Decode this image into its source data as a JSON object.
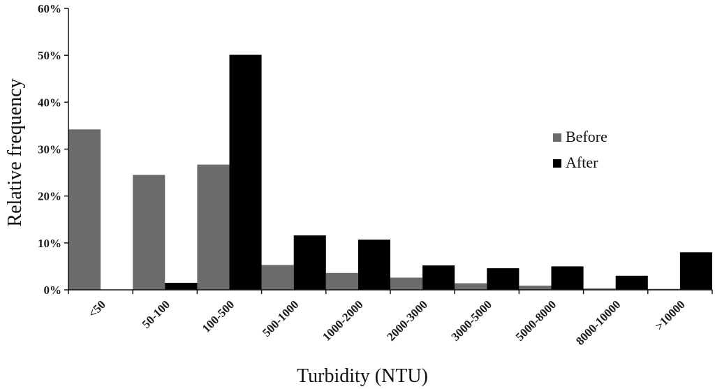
{
  "chart_data": {
    "type": "bar",
    "categories": [
      "<50",
      "50-100",
      "100-500",
      "500-1000",
      "1000-2000",
      "2000-3000",
      "3000-5000",
      "5000-8000",
      "8000-10000",
      ">10000"
    ],
    "series": [
      {
        "name": "Before",
        "color": "#6b6b6b",
        "values": [
          34.2,
          24.5,
          26.7,
          5.3,
          3.6,
          2.6,
          1.4,
          0.9,
          0.3,
          0.2
        ]
      },
      {
        "name": "After",
        "color": "#000000",
        "values": [
          0.0,
          1.5,
          50.1,
          11.6,
          10.7,
          5.2,
          4.6,
          5.0,
          3.0,
          8.0
        ]
      }
    ],
    "xlabel": "Turbidity (NTU)",
    "ylabel": "Relative frequency",
    "ylim": [
      0,
      60
    ],
    "yticks": [
      0,
      10,
      20,
      30,
      40,
      50,
      60
    ],
    "ytick_format": "{v}%",
    "legend_position": "right",
    "grid": false
  }
}
